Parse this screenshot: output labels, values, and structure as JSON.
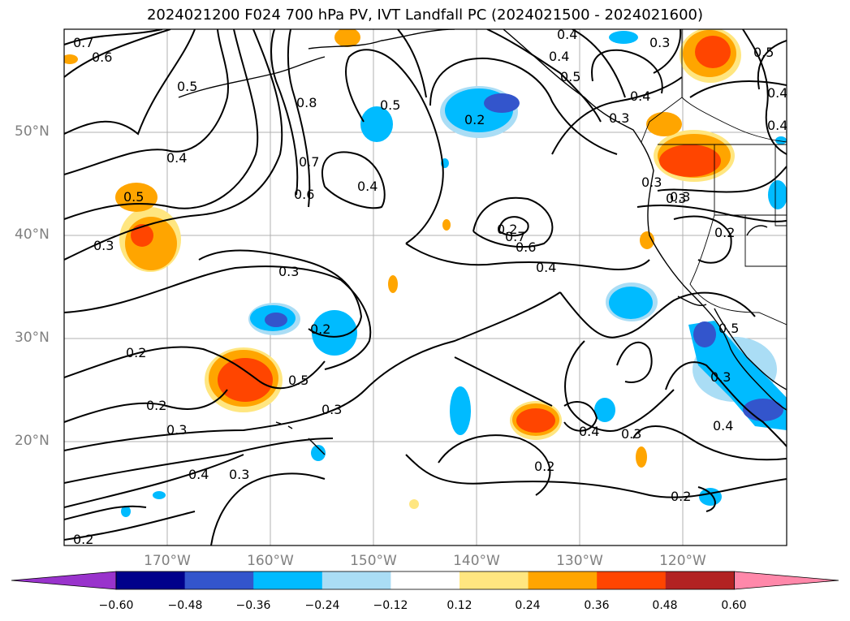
{
  "title": "2024021200 F024 700 hPa PV, IVT Landfall PC (2024021500 - 2024021600)",
  "map": {
    "lat_labels": [
      "50°N",
      "40°N",
      "30°N",
      "20°N"
    ],
    "lon_labels": [
      "170°W",
      "160°W",
      "150°W",
      "140°W",
      "130°W",
      "120°W"
    ]
  },
  "colorbar": {
    "ticks": [
      "−0.60",
      "−0.48",
      "−0.36",
      "−0.24",
      "−0.12",
      "0.12",
      "0.24",
      "0.36",
      "0.48",
      "0.60"
    ],
    "colors": [
      "#9933cc",
      "#00008b",
      "#3355cc",
      "#00bbff",
      "#aaddf5",
      "#ffffff",
      "#ffe680",
      "#ffa500",
      "#ff4500",
      "#b22222",
      "#ff88aa"
    ]
  },
  "contour_labels": [
    "0.7",
    "0.6",
    "0.4",
    "0.3",
    "0.5",
    "0.8",
    "0.7",
    "0.6",
    "0.5",
    "0.2",
    "0.4",
    "0.3",
    "0.3",
    "0.5",
    "0.4",
    "0.4",
    "0.3",
    "0.2",
    "0.7",
    "0.6",
    "0.4",
    "0.5",
    "0.3",
    "0.2",
    "0.2",
    "0.3",
    "0.5",
    "0.3",
    "0.2",
    "0.4",
    "0.3",
    "0.4",
    "0.4",
    "0.3",
    "0.2",
    "0.2",
    "0.3",
    "0.4",
    "0.4",
    "0.2",
    "0.3",
    "0.5",
    "0.4",
    "0.5",
    "0.3",
    "0.2"
  ]
}
